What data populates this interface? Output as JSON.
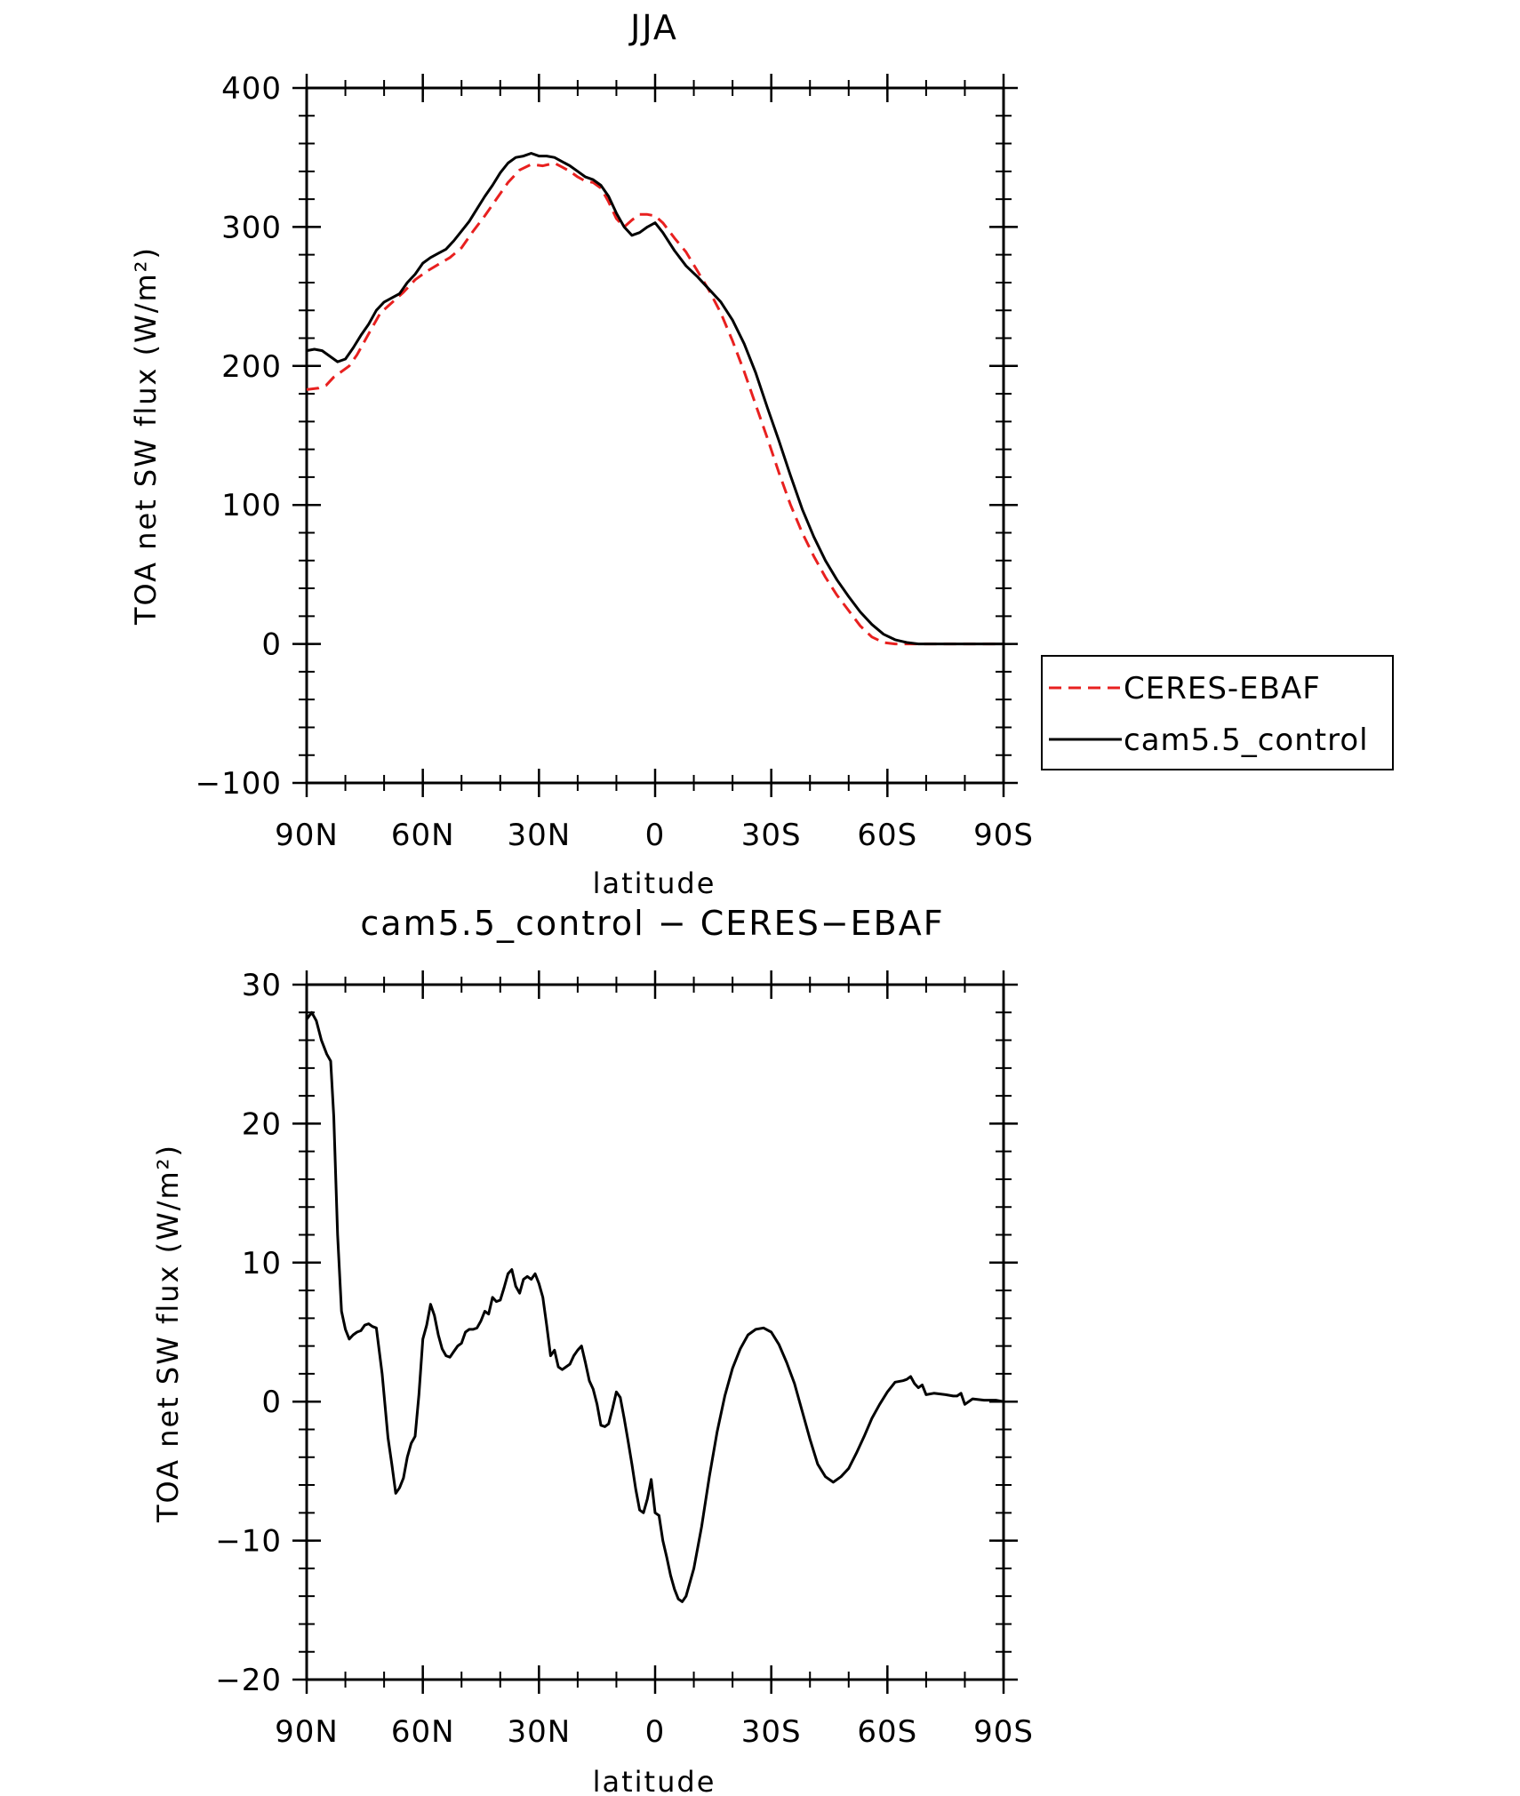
{
  "chart_data": [
    {
      "type": "line",
      "title": "JJA",
      "xlabel": "latitude",
      "ylabel": "TOA net SW flux (W/m²)",
      "xlim": [
        90,
        -90
      ],
      "ylim": [
        -100,
        400
      ],
      "x_ticks": [
        {
          "value": 90,
          "label": "90N"
        },
        {
          "value": 60,
          "label": "60N"
        },
        {
          "value": 30,
          "label": "30N"
        },
        {
          "value": 0,
          "label": "0"
        },
        {
          "value": -30,
          "label": "30S"
        },
        {
          "value": -60,
          "label": "60S"
        },
        {
          "value": -90,
          "label": "90S"
        }
      ],
      "y_ticks": [
        {
          "value": 400,
          "label": "400"
        },
        {
          "value": 300,
          "label": "300"
        },
        {
          "value": 200,
          "label": "200"
        },
        {
          "value": 100,
          "label": "100"
        },
        {
          "value": 0,
          "label": "0"
        },
        {
          "value": -100,
          "label": "−100"
        }
      ],
      "legend_position": "right",
      "series": [
        {
          "name": "CERES-EBAF",
          "color": "#e8201f",
          "dash": true,
          "x": [
            90,
            87,
            85,
            83,
            81,
            79,
            77,
            75,
            73,
            71,
            69,
            67,
            65,
            62,
            59,
            56,
            53,
            50,
            47,
            44,
            41,
            38,
            35,
            32,
            29,
            26,
            24,
            22,
            20,
            18,
            16,
            14,
            12,
            10,
            8,
            6,
            4,
            2,
            0,
            -2,
            -5,
            -8,
            -11,
            -14,
            -17,
            -20,
            -23,
            -26,
            -29,
            -32,
            -35,
            -38,
            -41,
            -44,
            -47,
            -50,
            -53,
            -56,
            -59,
            -62,
            -65,
            -68,
            -71,
            -75,
            -80,
            -85,
            -90
          ],
          "y": [
            183,
            184,
            186,
            192,
            196,
            200,
            208,
            218,
            228,
            238,
            243,
            248,
            253,
            262,
            268,
            273,
            278,
            285,
            297,
            308,
            320,
            332,
            341,
            345,
            344,
            346,
            343,
            340,
            336,
            333,
            332,
            328,
            318,
            306,
            300,
            305,
            309,
            309,
            308,
            303,
            292,
            282,
            268,
            254,
            238,
            218,
            196,
            172,
            148,
            123,
            100,
            80,
            63,
            48,
            35,
            24,
            13,
            5,
            1,
            0,
            0,
            0,
            0,
            0,
            0,
            0,
            0
          ]
        },
        {
          "name": "cam5.5_control",
          "color": "#000000",
          "dash": false,
          "x": [
            90,
            88,
            86,
            84,
            82,
            80,
            78,
            76,
            74,
            72,
            70,
            68,
            66,
            64,
            62,
            60,
            58,
            56,
            54,
            52,
            50,
            48,
            46,
            44,
            42,
            40,
            38,
            36,
            34,
            32,
            30,
            28,
            26,
            24,
            22,
            20,
            18,
            16,
            14,
            12,
            10,
            8,
            6,
            4,
            2,
            0,
            -2,
            -5,
            -8,
            -11,
            -14,
            -17,
            -20,
            -23,
            -26,
            -29,
            -32,
            -35,
            -38,
            -41,
            -44,
            -47,
            -50,
            -53,
            -56,
            -59,
            -62,
            -65,
            -68,
            -71,
            -75,
            -80,
            -85,
            -90
          ],
          "y": [
            211,
            212,
            211,
            207,
            203,
            205,
            213,
            222,
            230,
            240,
            246,
            249,
            252,
            260,
            266,
            274,
            278,
            281,
            284,
            290,
            297,
            304,
            313,
            322,
            330,
            339,
            346,
            350,
            351,
            353,
            351,
            351,
            350,
            347,
            344,
            340,
            336,
            334,
            330,
            322,
            310,
            300,
            294,
            296,
            300,
            303,
            296,
            283,
            272,
            264,
            255,
            246,
            233,
            216,
            195,
            170,
            146,
            121,
            97,
            77,
            60,
            46,
            34,
            23,
            14,
            7,
            3,
            1,
            0,
            0,
            0,
            0,
            0,
            0
          ]
        }
      ]
    },
    {
      "type": "line",
      "title": "cam5.5_control − CERES−EBAF",
      "xlabel": "latitude",
      "ylabel": "TOA net SW flux (W/m²)",
      "xlim": [
        90,
        -90
      ],
      "ylim": [
        -20,
        30
      ],
      "x_ticks": [
        {
          "value": 90,
          "label": "90N"
        },
        {
          "value": 60,
          "label": "60N"
        },
        {
          "value": 30,
          "label": "30N"
        },
        {
          "value": 0,
          "label": "0"
        },
        {
          "value": -30,
          "label": "30S"
        },
        {
          "value": -60,
          "label": "60S"
        },
        {
          "value": -90,
          "label": "90S"
        }
      ],
      "y_ticks": [
        {
          "value": 30,
          "label": "30"
        },
        {
          "value": 20,
          "label": "20"
        },
        {
          "value": 10,
          "label": "10"
        },
        {
          "value": 0,
          "label": "0"
        },
        {
          "value": -10,
          "label": "−10"
        },
        {
          "value": -20,
          "label": "−20"
        }
      ],
      "series": [
        {
          "name": "",
          "color": "#000000",
          "dash": false,
          "x": [
            90,
            88.7,
            87.5,
            86.2,
            84.8,
            83.8,
            83,
            82,
            81,
            80,
            79,
            78,
            77,
            76,
            75,
            74,
            73,
            72,
            70.5,
            69,
            68,
            67,
            66,
            65,
            64,
            63,
            62,
            61,
            60,
            59,
            58,
            57,
            56,
            55,
            54,
            53,
            52,
            51,
            50,
            49,
            48,
            47,
            46,
            45,
            44,
            43,
            42,
            41,
            40,
            39,
            38,
            37,
            36,
            35,
            34,
            33,
            32,
            31,
            30,
            29,
            28,
            27,
            26,
            25,
            24,
            23,
            22,
            21,
            20,
            19,
            18,
            17,
            16,
            15,
            14,
            13,
            12,
            11,
            10,
            9,
            8,
            7,
            6,
            5,
            4,
            3,
            2,
            1,
            0,
            -1,
            -2,
            -3,
            -4,
            -5,
            -6,
            -7,
            -8,
            -10,
            -12,
            -14,
            -16,
            -18,
            -20,
            -22,
            -24,
            -26,
            -28,
            -30,
            -32,
            -34,
            -36,
            -38,
            -40,
            -42,
            -44,
            -46,
            -48,
            -50,
            -52,
            -54,
            -56,
            -58,
            -60,
            -62,
            -64,
            -65,
            -66,
            -67,
            -68,
            -69,
            -70,
            -72,
            -75,
            -77,
            -78,
            -79,
            -80,
            -82,
            -85,
            -88,
            -90
          ],
          "y": [
            27.5,
            28,
            27.4,
            26,
            25,
            24.5,
            20.5,
            12,
            6.5,
            5.2,
            4.5,
            4.8,
            5,
            5.1,
            5.5,
            5.6,
            5.4,
            5.3,
            2,
            -2.6,
            -4.5,
            -6.6,
            -6.2,
            -5.5,
            -4,
            -3,
            -2.5,
            0.5,
            4.5,
            5.5,
            7,
            6.2,
            4.8,
            3.8,
            3.3,
            3.2,
            3.6,
            4,
            4.2,
            5,
            5.2,
            5.2,
            5.3,
            5.8,
            6.5,
            6.3,
            7.5,
            7.2,
            7.3,
            8.2,
            9.2,
            9.5,
            8.3,
            7.8,
            8.8,
            9,
            8.8,
            9.2,
            8.5,
            7.5,
            5.5,
            3.3,
            3.7,
            2.5,
            2.3,
            2.5,
            2.7,
            3.3,
            3.7,
            4,
            2.8,
            1.5,
            0.9,
            -0.2,
            -1.7,
            -1.8,
            -1.6,
            -0.5,
            0.7,
            0.3,
            -1.2,
            -2.8,
            -4.5,
            -6.3,
            -7.8,
            -8,
            -7,
            -5.6,
            -8,
            -8.2,
            -10,
            -11.2,
            -12.5,
            -13.5,
            -14.2,
            -14.4,
            -14,
            -12,
            -9,
            -5.4,
            -2.2,
            0.4,
            2.4,
            3.8,
            4.8,
            5.2,
            5.3,
            5,
            4.1,
            2.8,
            1.3,
            -0.7,
            -2.7,
            -4.5,
            -5.4,
            -5.8,
            -5.4,
            -4.8,
            -3.7,
            -2.5,
            -1.2,
            -0.2,
            0.7,
            1.4,
            1.5,
            1.6,
            1.8,
            1.3,
            1,
            1.2,
            0.5,
            0.6,
            0.5,
            0.4,
            0.4,
            0.6,
            -0.2,
            0.2,
            0.1,
            0.1,
            0
          ]
        }
      ]
    }
  ]
}
